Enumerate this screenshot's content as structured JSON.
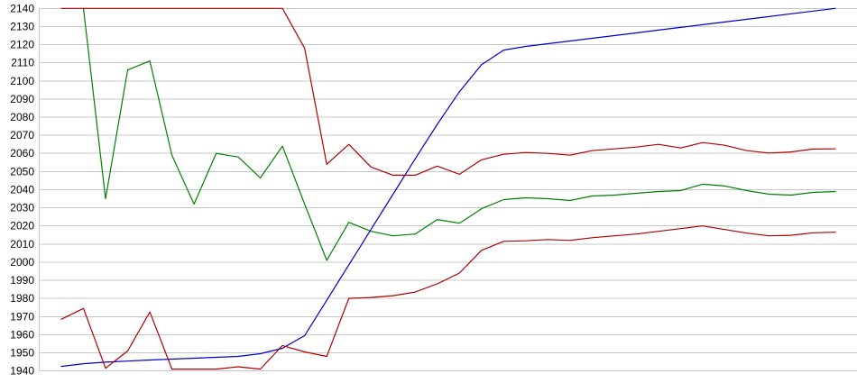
{
  "chart_data": {
    "type": "line",
    "title": "",
    "xlabel": "",
    "ylabel": "",
    "grid": true,
    "legend_position": "none",
    "x_axis": {
      "labels_visible": false,
      "point_count": 36
    },
    "y_axis": {
      "min": 1940,
      "max": 2140,
      "tick_step": 10,
      "ticks": [
        "2140",
        "2130",
        "2120",
        "2110",
        "2100",
        "2090",
        "2080",
        "2070",
        "2060",
        "2050",
        "2040",
        "2030",
        "2020",
        "2010",
        "2000",
        "1990",
        "1980",
        "1970",
        "1960",
        "1950",
        "1940"
      ]
    },
    "series": [
      {
        "name": "green-series",
        "color": "#008000",
        "values": [
          null,
          2140,
          2035,
          2106,
          2111,
          2059,
          2032,
          2060,
          2058,
          2046.5,
          2064,
          2032,
          2001,
          2022,
          2017,
          2014.5,
          2015.5,
          2023.5,
          2021.5,
          2029.5,
          2034.5,
          2035.5,
          2035,
          2034,
          2036.5,
          2037,
          2038,
          2039,
          2039.5,
          2043,
          2042,
          2039.5,
          2037.5,
          2037,
          2038.5,
          2039
        ]
      },
      {
        "name": "blue-series",
        "color": "#0000cc",
        "values": [
          1942.5,
          1944,
          1944.8,
          1945.4,
          1946,
          1946.5,
          1947,
          1947.5,
          1948,
          1949.5,
          1952.5,
          1959.5,
          1979,
          1998.5,
          2018,
          2037.5,
          2057,
          2076,
          2094,
          2109,
          2117,
          2119,
          2120.5,
          2122,
          2123.5,
          2125,
          2126.5,
          2128,
          2129.5,
          2131,
          2132.5,
          2134,
          2135.5,
          2137,
          2138.5,
          2140
        ]
      },
      {
        "name": "red-lower-series",
        "color": "#b00000",
        "values": [
          1968.5,
          1974.5,
          1941.5,
          1951,
          1972.5,
          1941,
          1941,
          1941,
          1942.3,
          1941,
          1954,
          1950.5,
          1948,
          1980,
          1980.5,
          1981.5,
          1983.5,
          1988,
          1994,
          2006.5,
          2011.5,
          2011.8,
          2012.5,
          2012,
          2013.5,
          2014.5,
          2015.5,
          2017,
          2018.5,
          2020,
          2018,
          2016,
          2014.5,
          2014.8,
          2016.2,
          2016.5
        ]
      },
      {
        "name": "red-upper-series",
        "color": "#b00000",
        "values": [
          2140,
          2140,
          2140,
          2140,
          2140,
          2140,
          2140,
          2140,
          2140,
          2140,
          2140,
          2118,
          2054,
          2065,
          2052.5,
          2048,
          2048,
          2053,
          2048.5,
          2056.5,
          2059.5,
          2060.5,
          2060,
          2059,
          2061.5,
          2062.5,
          2063.5,
          2065,
          2063,
          2066,
          2064.5,
          2061.5,
          2060.2,
          2060.8,
          2062.4,
          2062.5
        ]
      }
    ]
  },
  "colors": {
    "background": "#ffffff",
    "gridline": "#c8c8c8",
    "axis_line": "#c8c8c8",
    "tick_text": "#000000"
  }
}
